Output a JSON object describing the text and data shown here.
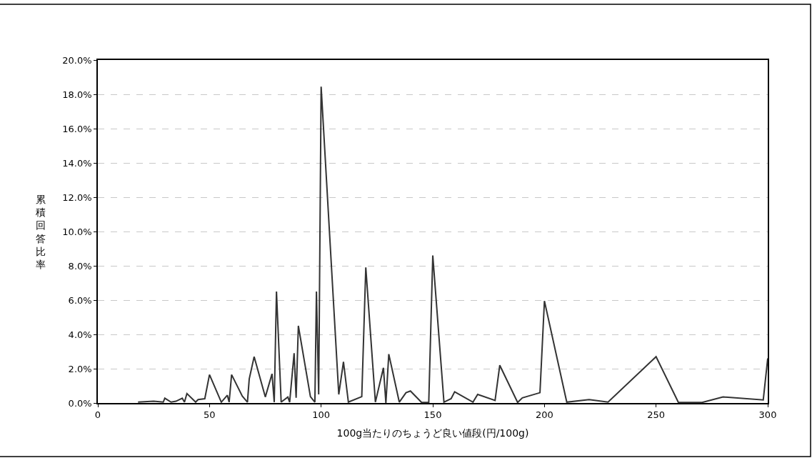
{
  "chart_data": {
    "type": "line",
    "xlabel": "100g当たりのちょうど良い値段(円/100g)",
    "ylabel": "累積回答比率",
    "x": [
      18,
      25,
      29.3,
      30,
      32.8,
      35,
      37.8,
      38.8,
      39.9,
      43.8,
      44.9,
      47.9,
      50,
      55.3,
      58,
      58.8,
      59.9,
      64.7,
      67,
      67.8,
      70,
      75,
      78,
      79,
      80,
      82.1,
      85.1,
      85.9,
      87.9,
      88.8,
      89.8,
      95.2,
      97.2,
      97.9,
      98.9,
      100,
      107.9,
      110,
      112.2,
      118.2,
      120,
      124.3,
      127.9,
      129,
      130.3,
      135,
      138,
      140,
      145,
      148.2,
      150,
      155,
      158.2,
      159.8,
      168,
      170.1,
      177.9,
      180,
      188,
      190.1,
      198,
      200,
      210,
      220,
      228.5,
      250,
      260,
      270.6,
      280,
      298,
      300
    ],
    "series": [
      {
        "color": "#333333",
        "values": [
          0.05,
          0.1,
          0.05,
          0.28,
          0.05,
          0.1,
          0.28,
          0.05,
          0.55,
          0.05,
          0.2,
          0.25,
          1.65,
          0.05,
          0.45,
          0.05,
          1.65,
          0.4,
          0.05,
          1.4,
          2.7,
          0.35,
          1.7,
          0.05,
          6.5,
          0.05,
          0.35,
          0.05,
          2.9,
          0.3,
          4.5,
          0.37,
          0.05,
          6.5,
          0.5,
          18.45,
          0.5,
          2.4,
          0.05,
          0.37,
          7.9,
          0.05,
          2.05,
          0.0,
          2.85,
          0.05,
          0.6,
          0.7,
          0.03,
          0.03,
          8.6,
          0.05,
          0.25,
          0.65,
          0.05,
          0.5,
          0.15,
          2.2,
          0.03,
          0.3,
          0.6,
          5.95,
          0.05,
          0.2,
          0.05,
          2.7,
          0.03,
          0.03,
          0.35,
          0.18,
          2.6
        ]
      }
    ],
    "xlim": [
      0,
      300
    ],
    "xticks": [
      0,
      50,
      100,
      150,
      200,
      250,
      300
    ],
    "ylim": [
      0,
      20
    ],
    "yticks": [
      {
        "value": 0,
        "label": "0.0%"
      },
      {
        "value": 2,
        "label": "2.0%"
      },
      {
        "value": 4,
        "label": "4.0%"
      },
      {
        "value": 6,
        "label": "6.0%"
      },
      {
        "value": 8,
        "label": "8.0%"
      },
      {
        "value": 10,
        "label": "10.0%"
      },
      {
        "value": 12,
        "label": "12.0%"
      },
      {
        "value": 14,
        "label": "14.0%"
      },
      {
        "value": 16,
        "label": "16.0%"
      },
      {
        "value": 18,
        "label": "18.0%"
      },
      {
        "value": 20,
        "label": "20.0%"
      }
    ],
    "grid": "y",
    "marker": "none",
    "line_style": "solid"
  }
}
